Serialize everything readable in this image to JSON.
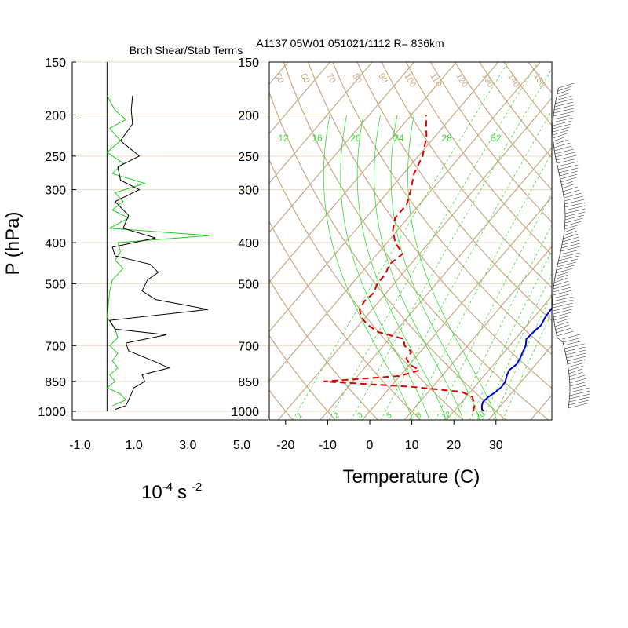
{
  "header": {
    "panel_title": "Brch Shear/Stab Terms",
    "sounding_label": "A1137 05W01 051021/1112 R= 836km"
  },
  "colors": {
    "grid": "#c8a882",
    "isobar": "#ecd9c2",
    "mixing": "#33dd33",
    "temperature": "#0000cc",
    "dewpoint": "#dd0000",
    "shear": "#000000",
    "stability": "#22cc22",
    "mixing_label": "#33dd33"
  },
  "chart_data": [
    {
      "type": "line",
      "title": "Brch Shear/Stab Terms",
      "ylabel": "P (hPa)",
      "xlabel": "10-4 s -2",
      "xlabel_parts": {
        "base": "10",
        "exp1": "-4",
        "mid": "s",
        "exp2": "-2"
      },
      "xlim": [
        -1.0,
        5.0
      ],
      "ylim": [
        1000,
        150
      ],
      "y_scale": "log",
      "yticks": [
        150,
        200,
        250,
        300,
        400,
        500,
        700,
        850,
        1000
      ],
      "xticks": [
        -1.0,
        1.0,
        3.0,
        5.0
      ],
      "xtick_labels": [
        "-1.0",
        "1.0",
        "3.0",
        "5.0"
      ],
      "grid": "isobars",
      "series": [
        {
          "key": "shear",
          "pressures": [
            180,
            195,
            210,
            230,
            250,
            265,
            285,
            300,
            320,
            345,
            370,
            390,
            410,
            430,
            450,
            470,
            490,
            520,
            545,
            575,
            610,
            640,
            660,
            690,
            720,
            760,
            790,
            820,
            850,
            880,
            910,
            940,
            970,
            990
          ],
          "values": [
            0.95,
            0.9,
            0.95,
            0.5,
            1.2,
            0.4,
            0.5,
            1.2,
            0.3,
            0.8,
            0.6,
            1.8,
            0.2,
            0.3,
            1.6,
            1.9,
            1.5,
            1.3,
            1.8,
            3.75,
            0.1,
            0.3,
            2.2,
            0.7,
            0.8,
            1.7,
            2.3,
            1.3,
            1.4,
            1.0,
            0.9,
            0.8,
            0.7,
            0.3
          ]
        },
        {
          "key": "stability",
          "pressures": [
            180,
            195,
            205,
            215,
            230,
            245,
            260,
            275,
            290,
            305,
            320,
            335,
            350,
            370,
            385,
            400,
            420,
            440,
            460,
            490,
            520,
            560,
            600,
            640,
            670,
            700,
            730,
            760,
            790,
            820,
            850,
            880,
            910,
            940,
            970
          ],
          "values": [
            0.0,
            0.3,
            0.7,
            0.1,
            0.5,
            0.0,
            0.6,
            0.2,
            1.4,
            0.3,
            0.6,
            0.2,
            0.8,
            0.1,
            3.8,
            0.4,
            0.5,
            0.3,
            0.6,
            0.2,
            0.1,
            0.05,
            0.0,
            0.3,
            0.4,
            0.1,
            0.4,
            0.2,
            0.4,
            0.1,
            0.3,
            0.0,
            0.5,
            0.7,
            0.2
          ]
        }
      ]
    },
    {
      "type": "line",
      "title": "A1137 05W01 051021/1112 R= 836km",
      "xlabel": "Temperature (C)",
      "ylim": [
        1000,
        150
      ],
      "y_scale": "log",
      "xlim": [
        -25,
        40
      ],
      "xticks": [
        -20,
        -10,
        0,
        10,
        20,
        30
      ],
      "xtick_labels": [
        "-20",
        "-10",
        "0",
        "10",
        "20",
        "30"
      ],
      "yticks": [
        150,
        200,
        250,
        300,
        400,
        500,
        700,
        850,
        1000
      ],
      "isotherm_labels": [
        "50",
        "60",
        "70",
        "80",
        "90",
        "100",
        "110",
        "120",
        "130",
        "140",
        "150"
      ],
      "mixing_ratio_labels_top": [
        "12",
        "16",
        "20",
        "24",
        "28",
        "32"
      ],
      "mixing_ratio_labels_bottom": [
        "1",
        "2",
        "3",
        "5",
        "8",
        "12",
        "20"
      ],
      "series": [
        {
          "key": "temperature",
          "pressures": [
            1000,
            990,
            970,
            950,
            925,
            900,
            875,
            850,
            825,
            800,
            775,
            750,
            725,
            700,
            675,
            650,
            625,
            600,
            575,
            550,
            525,
            500,
            475,
            450,
            425,
            400,
            375,
            350,
            325,
            300,
            275,
            250,
            225,
            200,
            185
          ],
          "values": [
            27.2,
            26.3,
            25.5,
            25.0,
            25.3,
            26.0,
            26.4,
            26.2,
            25.4,
            24.8,
            25.4,
            25.0,
            24.4,
            23.8,
            22.6,
            22.9,
            23.3,
            22.7,
            22.5,
            22.1,
            21.7,
            21.3,
            20.4,
            19.2,
            17.5,
            15.0,
            12.8,
            10.3,
            7.8,
            4.8,
            1.5,
            -2.0,
            -6.0,
            -10.0,
            -12.5
          ]
        },
        {
          "key": "dewpoint",
          "pressures": [
            1000,
            990,
            970,
            950,
            925,
            900,
            875,
            850,
            825,
            800,
            775,
            750,
            725,
            700,
            675,
            650,
            625,
            600,
            575,
            550,
            525,
            500,
            475,
            450,
            425,
            400,
            375,
            350,
            325,
            300,
            275,
            250,
            225,
            200
          ],
          "values": [
            24.5,
            24.3,
            23.8,
            22.8,
            21.5,
            18.0,
            5.0,
            -17.0,
            0.0,
            3.5,
            0.0,
            -2.0,
            -2.0,
            -5.0,
            -6.5,
            -14.0,
            -18.0,
            -21.0,
            -23.0,
            -23.5,
            -23.0,
            -24.0,
            -24.0,
            -25.0,
            -24.0,
            -28.0,
            -31.0,
            -33.0,
            -33.0,
            -35.0,
            -37.5,
            -39.0,
            -42.0,
            -46.5
          ]
        }
      ]
    }
  ]
}
